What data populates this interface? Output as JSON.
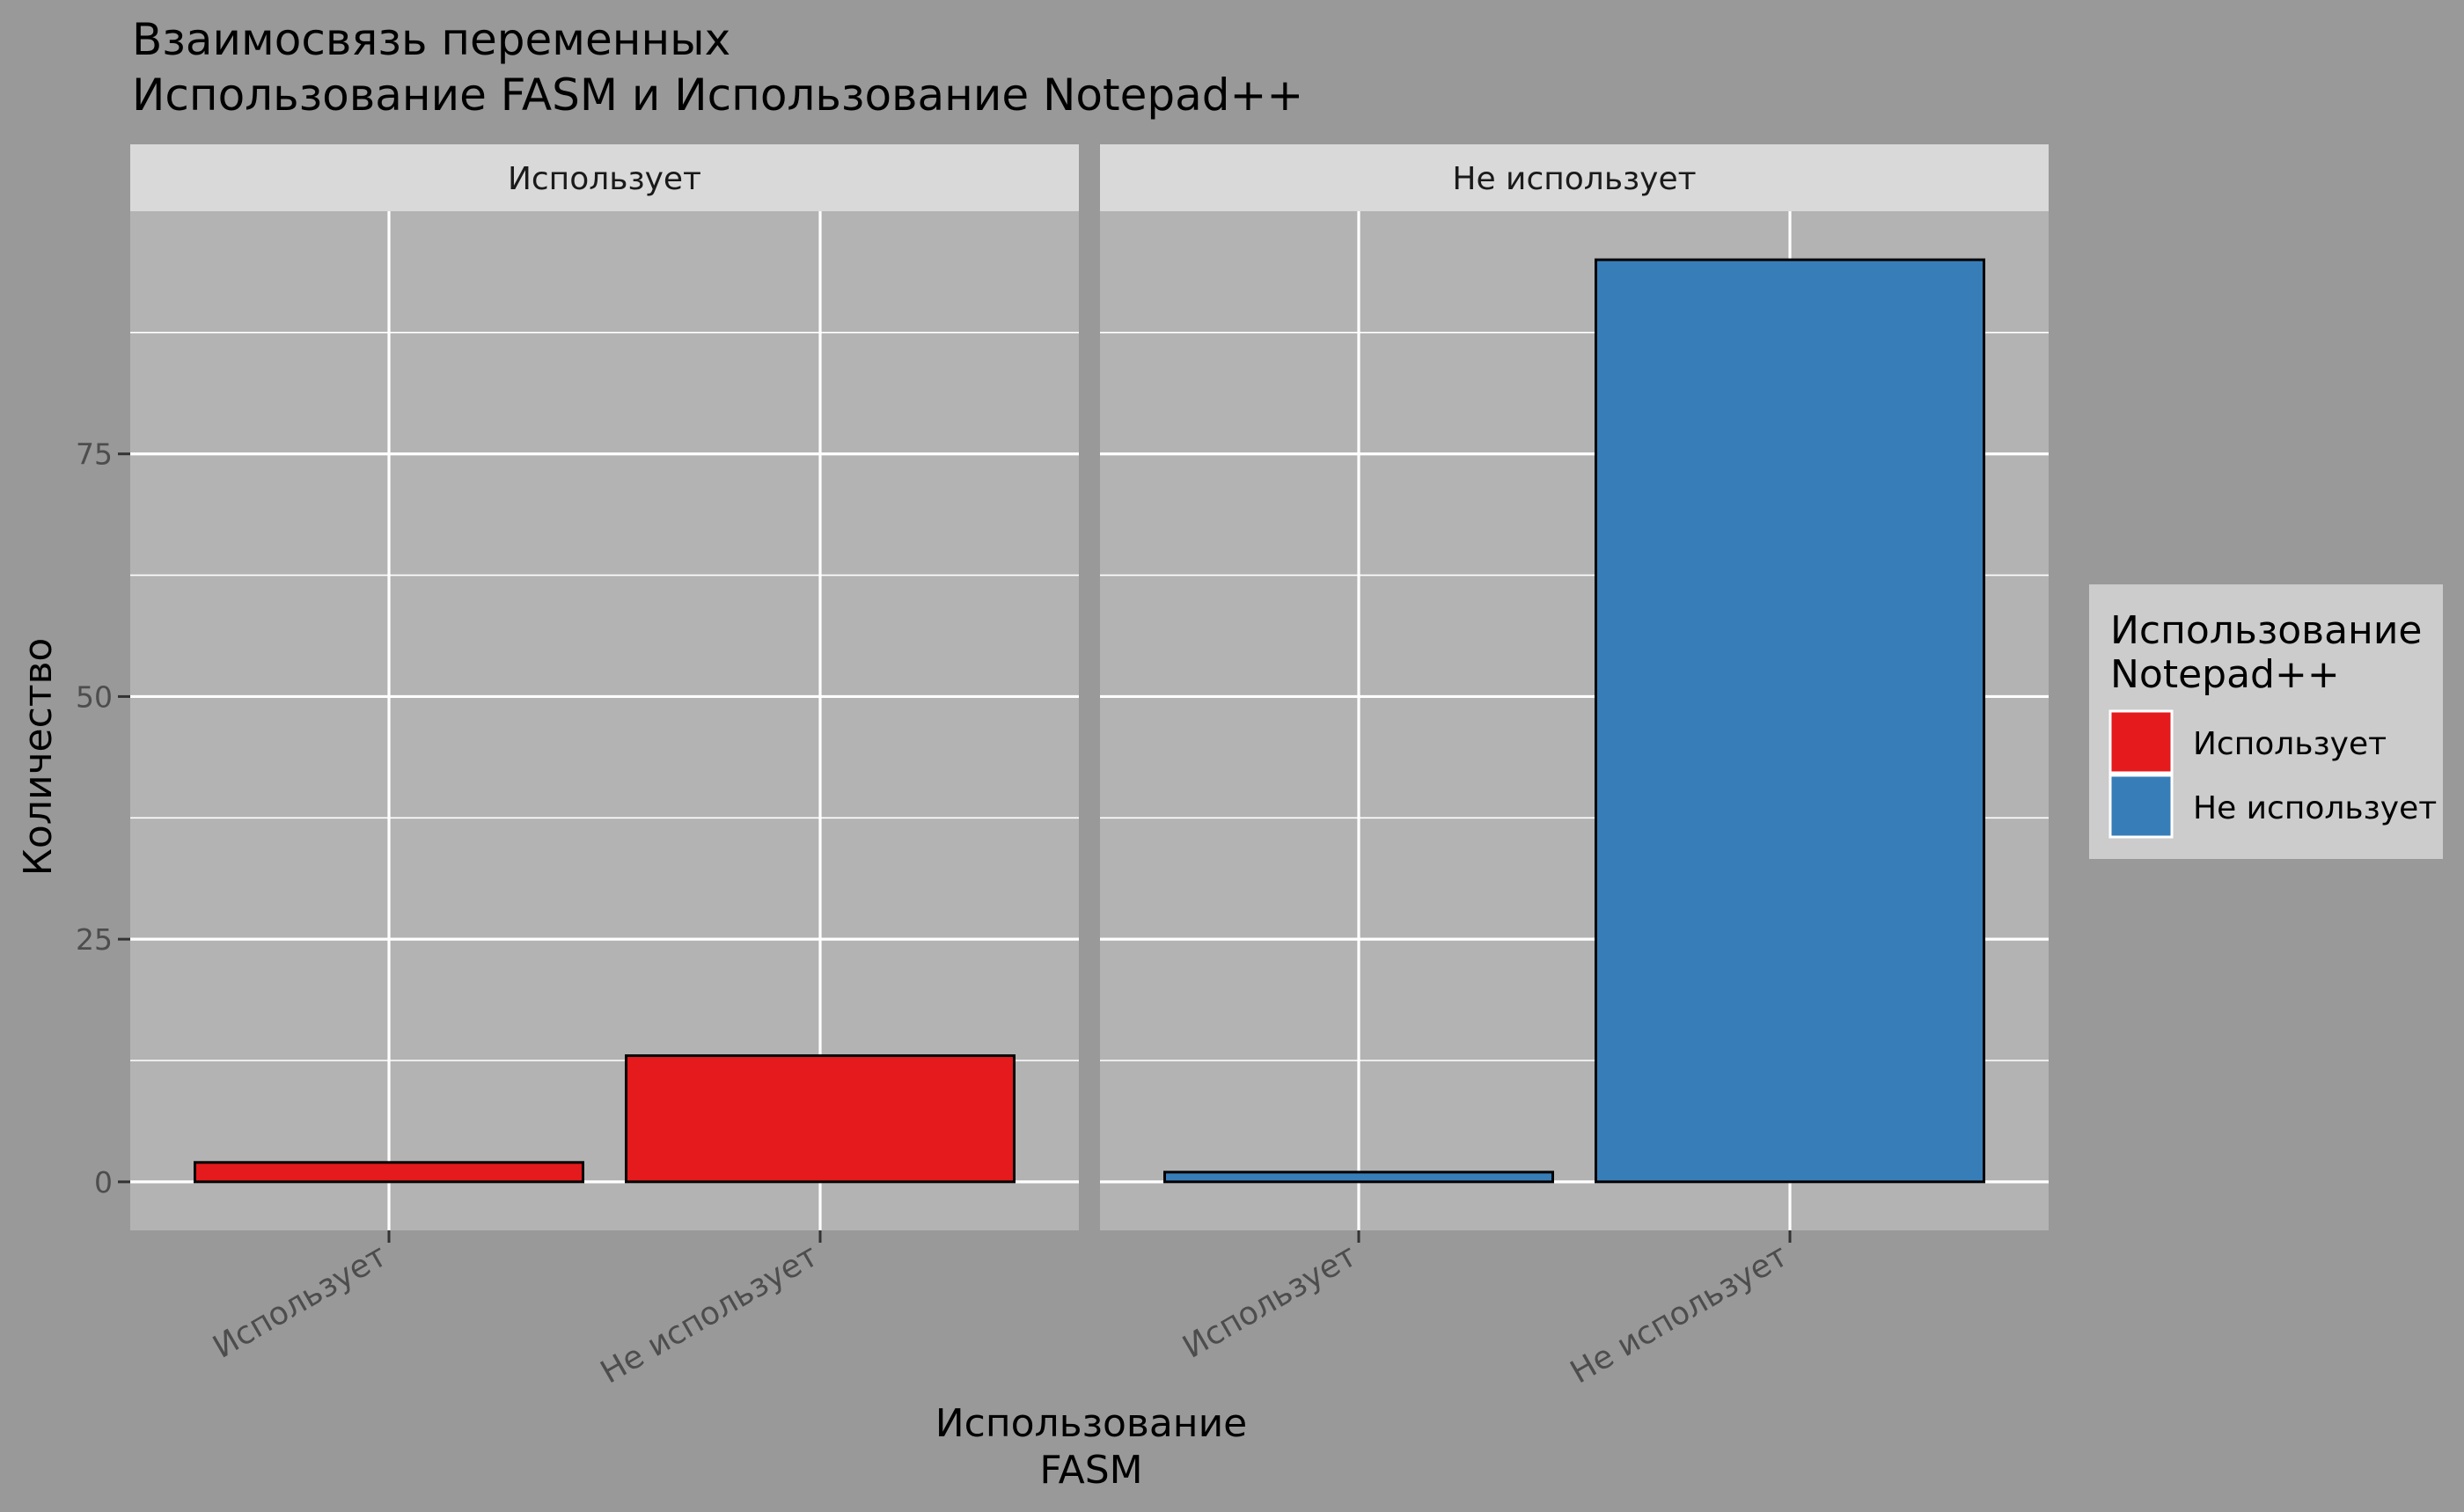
{
  "chart_data": {
    "type": "bar",
    "title_lines": [
      "Взаимосвязь переменных",
      "Использование FASM и Использование Notepad++"
    ],
    "xlabel_lines": [
      "Использование",
      "FASM"
    ],
    "ylabel": "Количество",
    "ylim": [
      -5,
      100
    ],
    "yticks": [
      0,
      25,
      50,
      75
    ],
    "grid": true,
    "facets": [
      "Использует",
      "Не использует"
    ],
    "categories": [
      "Использует",
      "Не использует"
    ],
    "legend": {
      "title_lines": [
        "Использование",
        "Notepad++"
      ],
      "position": "right",
      "items": [
        {
          "label": "Использует",
          "color": "#E41A1C"
        },
        {
          "label": "Не использует",
          "color": "#377EB8"
        }
      ]
    },
    "panels": [
      {
        "facet": "Использует",
        "fill_index": 0,
        "values": [
          2,
          13
        ]
      },
      {
        "facet": "Не использует",
        "fill_index": 1,
        "values": [
          1,
          95
        ]
      }
    ]
  }
}
